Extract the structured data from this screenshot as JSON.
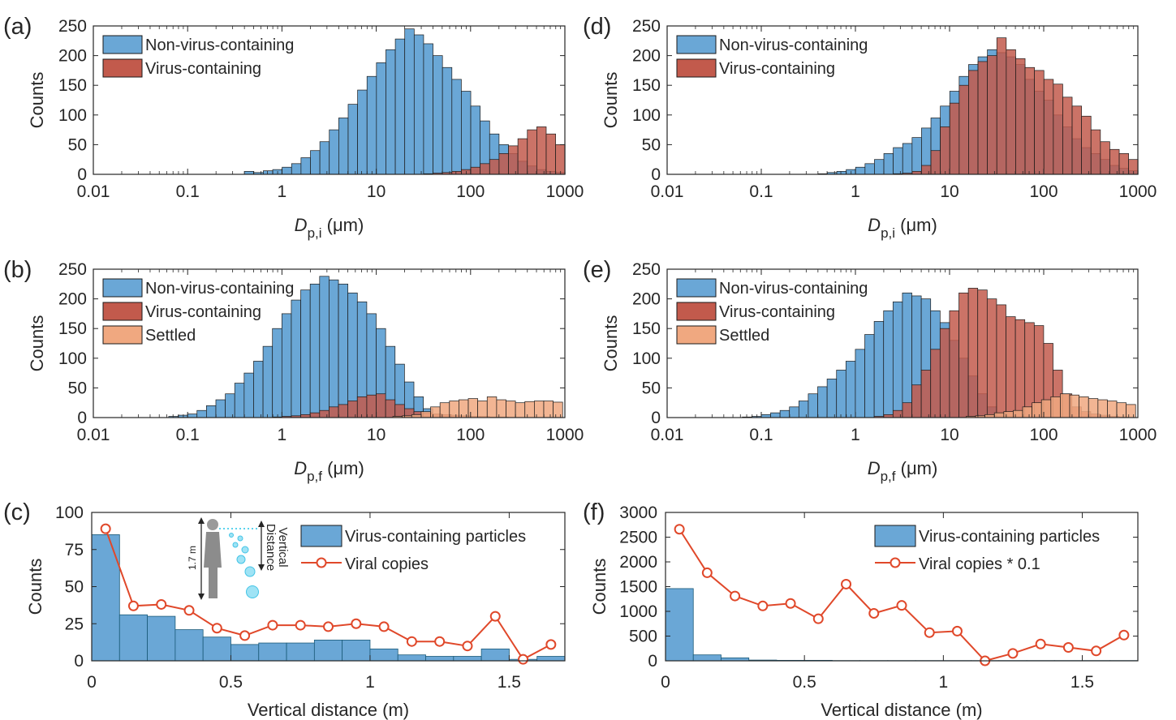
{
  "colors": {
    "blue": "#6aa7d6",
    "red": "#c25a4c",
    "settled": "#f0a880",
    "line": "#e0482a",
    "axis": "#262626"
  },
  "chart_data": [
    {
      "id": "a",
      "panel_label": "(a)",
      "type": "bar",
      "subtype": "histogram",
      "x_scale": "log",
      "xlim": [
        0.01,
        1000
      ],
      "ylim": [
        0,
        250
      ],
      "xticks": [
        "0.01",
        "0.1",
        "1",
        "10",
        "100",
        "1000"
      ],
      "yticks": [
        "0",
        "50",
        "100",
        "150",
        "200",
        "250"
      ],
      "ylabel": "Counts",
      "xlabel": {
        "symbol": "D",
        "subscript": "p,i",
        "unit": "(μm)"
      },
      "bin_width_log10": 0.1,
      "legend_position": "top-left",
      "legend": [
        "Non-virus-containing",
        "Virus-containing"
      ],
      "series": [
        {
          "name": "Non-virus-containing",
          "color_key": "blue",
          "x_start": 0.4,
          "values": [
            5,
            3,
            6,
            8,
            12,
            18,
            28,
            40,
            55,
            75,
            95,
            118,
            142,
            165,
            188,
            210,
            228,
            245,
            235,
            220,
            200,
            180,
            160,
            140,
            115,
            90,
            68,
            50,
            35,
            22,
            14,
            8,
            5,
            3,
            2,
            1,
            1,
            0,
            0,
            0,
            0,
            0,
            0,
            0,
            0,
            0
          ]
        },
        {
          "name": "Virus-containing",
          "color_key": "red",
          "x_start": 0.4,
          "values": [
            0,
            0,
            0,
            0,
            0,
            0,
            0,
            0,
            0,
            0,
            0,
            0,
            0,
            0,
            0,
            0,
            0,
            0,
            0,
            1,
            2,
            3,
            5,
            8,
            12,
            18,
            25,
            35,
            48,
            60,
            75,
            80,
            68,
            50,
            35,
            25,
            18,
            15,
            12,
            8,
            6,
            4,
            2,
            1,
            1,
            0
          ]
        }
      ]
    },
    {
      "id": "d",
      "panel_label": "(d)",
      "type": "bar",
      "subtype": "histogram",
      "x_scale": "log",
      "xlim": [
        0.01,
        1000
      ],
      "ylim": [
        0,
        250
      ],
      "xticks": [
        "0.01",
        "0.1",
        "1",
        "10",
        "100",
        "1000"
      ],
      "yticks": [
        "0",
        "50",
        "100",
        "150",
        "200",
        "250"
      ],
      "ylabel": "Counts",
      "xlabel": {
        "symbol": "D",
        "subscript": "p,i",
        "unit": "(μm)"
      },
      "bin_width_log10": 0.1,
      "legend_position": "top-left",
      "legend": [
        "Non-virus-containing",
        "Virus-containing"
      ],
      "series": [
        {
          "name": "Non-virus-containing",
          "color_key": "blue",
          "x_start": 0.4,
          "values": [
            1,
            3,
            5,
            8,
            12,
            18,
            25,
            35,
            45,
            52,
            62,
            78,
            95,
            115,
            140,
            165,
            185,
            198,
            210,
            205,
            198,
            185,
            160,
            140,
            125,
            100,
            80,
            60,
            45,
            35,
            25,
            15,
            10,
            6,
            4,
            2,
            1,
            0,
            0,
            0
          ]
        },
        {
          "name": "Virus-containing",
          "color_key": "red",
          "x_start": 0.4,
          "values": [
            0,
            0,
            0,
            0,
            0,
            0,
            0,
            0,
            1,
            2,
            5,
            15,
            40,
            80,
            120,
            150,
            175,
            190,
            200,
            230,
            210,
            195,
            180,
            175,
            160,
            152,
            130,
            115,
            98,
            75,
            55,
            42,
            35,
            25,
            18,
            12,
            8,
            5,
            3,
            2
          ]
        }
      ]
    },
    {
      "id": "b",
      "panel_label": "(b)",
      "type": "bar",
      "subtype": "histogram",
      "x_scale": "log",
      "xlim": [
        0.01,
        1000
      ],
      "ylim": [
        0,
        250
      ],
      "xticks": [
        "0.01",
        "0.1",
        "1",
        "10",
        "100",
        "1000"
      ],
      "yticks": [
        "0",
        "50",
        "100",
        "150",
        "200",
        "250"
      ],
      "ylabel": "Counts",
      "xlabel": {
        "symbol": "D",
        "subscript": "p,f",
        "unit": "(μm)"
      },
      "bin_width_log10": 0.1,
      "legend_position": "top-left",
      "legend": [
        "Non-virus-containing",
        "Virus-containing",
        "Settled"
      ],
      "series": [
        {
          "name": "Non-virus-containing",
          "color_key": "blue",
          "x_start": 0.063,
          "values": [
            2,
            4,
            6,
            12,
            20,
            30,
            40,
            58,
            75,
            95,
            120,
            150,
            175,
            198,
            215,
            225,
            238,
            232,
            225,
            210,
            195,
            175,
            150,
            120,
            90,
            60,
            35,
            15,
            5,
            2,
            1,
            0,
            0,
            0,
            0,
            0,
            0,
            0,
            0,
            0,
            0,
            0,
            0,
            0,
            0,
            0,
            0,
            0,
            0,
            0,
            0,
            0,
            0,
            0,
            0,
            0,
            0,
            0,
            0,
            0,
            0,
            0,
            0,
            0,
            0,
            0,
            0,
            0,
            0,
            0,
            0,
            0,
            0,
            0,
            0,
            0,
            0,
            0,
            0,
            0,
            0
          ]
        },
        {
          "name": "Virus-containing",
          "color_key": "red",
          "x_start": 0.063,
          "values": [
            0,
            0,
            0,
            0,
            0,
            0,
            0,
            0,
            0,
            0,
            0,
            1,
            2,
            3,
            5,
            8,
            12,
            18,
            22,
            28,
            35,
            38,
            40,
            30,
            22,
            15,
            10,
            8,
            6,
            5,
            4,
            3,
            2,
            2,
            1,
            1,
            0,
            0,
            0,
            0,
            0,
            0,
            0,
            0,
            0
          ]
        },
        {
          "name": "Settled",
          "color_key": "settled",
          "x_start": 15,
          "values": [
            2,
            3,
            5,
            10,
            18,
            25,
            28,
            30,
            32,
            28,
            35,
            30,
            28,
            25,
            27,
            28,
            28,
            26,
            24,
            20,
            15,
            10,
            5,
            2
          ]
        }
      ]
    },
    {
      "id": "e",
      "panel_label": "(e)",
      "type": "bar",
      "subtype": "histogram",
      "x_scale": "log",
      "xlim": [
        0.01,
        1000
      ],
      "ylim": [
        0,
        250
      ],
      "xticks": [
        "0.01",
        "0.1",
        "1",
        "10",
        "100",
        "1000"
      ],
      "yticks": [
        "0",
        "50",
        "100",
        "150",
        "200",
        "250"
      ],
      "ylabel": "Counts",
      "xlabel": {
        "symbol": "D",
        "subscript": "p,f",
        "unit": "(μm)"
      },
      "bin_width_log10": 0.1,
      "legend_position": "top-left",
      "legend": [
        "Non-virus-containing",
        "Virus-containing",
        "Settled"
      ],
      "series": [
        {
          "name": "Non-virus-containing",
          "color_key": "blue",
          "x_start": 0.063,
          "values": [
            1,
            2,
            5,
            8,
            12,
            18,
            28,
            40,
            52,
            65,
            80,
            95,
            115,
            140,
            162,
            180,
            195,
            210,
            205,
            200,
            180,
            160,
            130,
            100,
            70,
            40,
            18,
            8,
            3,
            1
          ]
        },
        {
          "name": "Virus-containing",
          "color_key": "red",
          "x_start": 0.063,
          "values": [
            0,
            0,
            0,
            0,
            0,
            0,
            0,
            0,
            0,
            0,
            0,
            0,
            0,
            0,
            2,
            5,
            12,
            25,
            55,
            80,
            115,
            150,
            180,
            210,
            218,
            215,
            200,
            190,
            170,
            165,
            160,
            155,
            125,
            80,
            40,
            18,
            10,
            6,
            4,
            2,
            1,
            0
          ]
        },
        {
          "name": "Settled",
          "color_key": "settled",
          "x_start": 15,
          "values": [
            2,
            3,
            5,
            8,
            10,
            12,
            18,
            25,
            30,
            35,
            40,
            38,
            35,
            32,
            30,
            28,
            25,
            22,
            20,
            15,
            10,
            8,
            5,
            3,
            2,
            1
          ]
        }
      ]
    },
    {
      "id": "c",
      "panel_label": "(c)",
      "type": "bar",
      "x_scale": "linear",
      "xlim": [
        0,
        1.7
      ],
      "ylim": [
        0,
        100
      ],
      "xticks": [
        "0",
        "0.5",
        "1",
        "1.5"
      ],
      "yticks": [
        "0",
        "25",
        "50",
        "75",
        "100"
      ],
      "ylabel": "Counts",
      "xlabel_text": "Vertical distance (m)",
      "legend_position": "top-right",
      "legend": [
        "Virus-containing particles",
        "Viral copies"
      ],
      "bars": {
        "name": "Virus-containing particles",
        "bin_width": 0.1,
        "values": [
          85,
          31,
          30,
          21,
          16,
          11,
          12,
          12,
          14,
          14,
          8,
          4,
          3,
          3,
          8,
          1,
          3
        ]
      },
      "line": {
        "name": "Viral copies",
        "x": [
          0.05,
          0.15,
          0.25,
          0.35,
          0.45,
          0.55,
          0.65,
          0.75,
          0.85,
          0.95,
          1.05,
          1.15,
          1.25,
          1.35,
          1.45,
          1.55,
          1.65
        ],
        "y": [
          89,
          37,
          38,
          34,
          22,
          17,
          24,
          24,
          23,
          25,
          23,
          13,
          13,
          10,
          30,
          1,
          11
        ]
      },
      "inset_labels": {
        "height": "1.7 m",
        "distance": "Vertical Distance"
      }
    },
    {
      "id": "f",
      "panel_label": "(f)",
      "type": "bar",
      "x_scale": "linear",
      "xlim": [
        0,
        1.7
      ],
      "ylim": [
        0,
        3000
      ],
      "xticks": [
        "0",
        "0.5",
        "1",
        "1.5"
      ],
      "yticks": [
        "0",
        "500",
        "1000",
        "1500",
        "2000",
        "2500",
        "3000"
      ],
      "ylabel": "Counts",
      "xlabel_text": "Vertical distance (m)",
      "legend_position": "top-right",
      "legend": [
        "Virus-containing particles",
        "Viral copies * 0.1"
      ],
      "bars": {
        "name": "Virus-containing particles",
        "bin_width": 0.1,
        "values": [
          1460,
          120,
          60,
          15,
          10,
          10,
          5,
          5,
          5,
          5,
          5,
          5,
          5,
          5,
          5,
          5,
          5
        ]
      },
      "line": {
        "name": "Viral copies * 0.1",
        "x": [
          0.05,
          0.15,
          0.25,
          0.35,
          0.45,
          0.55,
          0.65,
          0.75,
          0.85,
          0.95,
          1.05,
          1.15,
          1.25,
          1.35,
          1.45,
          1.55,
          1.65
        ],
        "y": [
          2660,
          1780,
          1310,
          1110,
          1160,
          850,
          1550,
          960,
          1120,
          570,
          600,
          0,
          150,
          340,
          270,
          200,
          520
        ]
      }
    }
  ]
}
